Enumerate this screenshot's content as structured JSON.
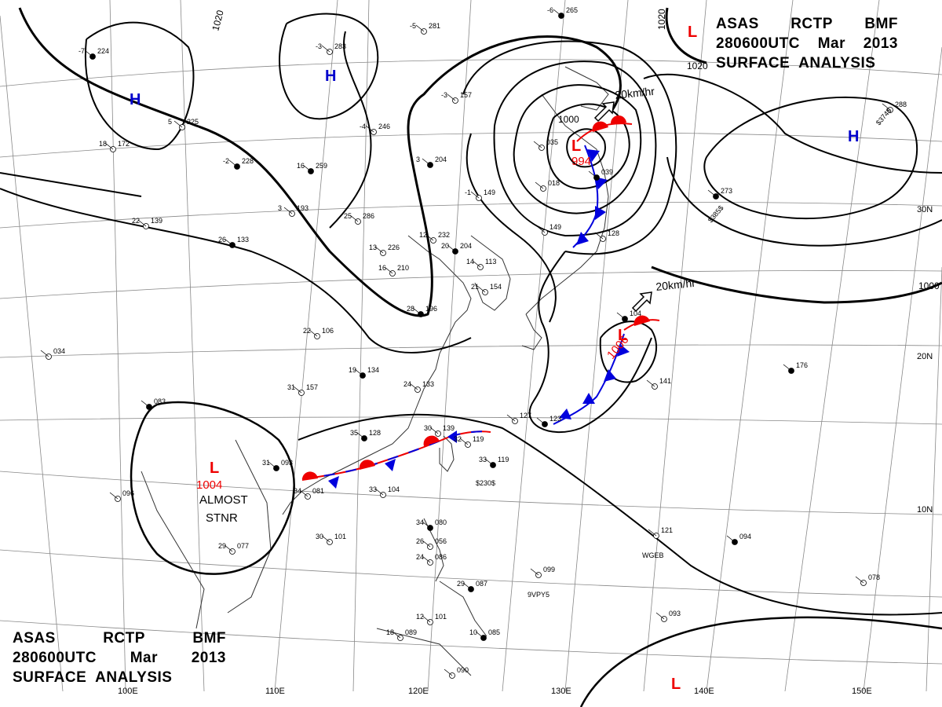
{
  "header": {
    "line1": [
      "ASAS",
      "RCTP",
      "BMF"
    ],
    "line2": [
      "280600UTC",
      "Mar",
      "2013"
    ],
    "line3": "SURFACE  ANALYSIS"
  },
  "pressure_centers": {
    "h_marker": "H",
    "l_marker": "L",
    "low_values": [
      "1004",
      "994",
      "1006"
    ],
    "almost_stnr": [
      "ALMOST",
      "STNR"
    ]
  },
  "isobar_labels": [
    "1020",
    "1020",
    "1020",
    "1000"
  ],
  "motion_labels": [
    "20km/hr",
    "20km/hr"
  ],
  "latitude_labels": [
    "30N",
    "20N",
    "10N"
  ],
  "longitude_labels": [
    "100E",
    "110E",
    "120E",
    "130E",
    "140E",
    "150E"
  ],
  "station_numbers": [
    "224",
    "172",
    "225",
    "228",
    "283",
    "281",
    "265",
    "157",
    "246",
    "204",
    "149",
    "286",
    "259",
    "193",
    "226",
    "133",
    "139",
    "232",
    "204",
    "113",
    "210",
    "134",
    "106",
    "154",
    "196",
    "133",
    "157",
    "128",
    "139",
    "119",
    "119",
    "104",
    "081",
    "093",
    "077",
    "101",
    "080",
    "056",
    "086",
    "087",
    "101",
    "089",
    "085",
    "090",
    "099",
    "094",
    "121",
    "141",
    "176",
    "093",
    "078",
    "273",
    "288",
    "096",
    "083",
    "034",
    "127",
    "123",
    "149",
    "128",
    "039",
    "035",
    "018",
    "104"
  ],
  "station_temps": [
    "-7",
    "18",
    "5",
    "-2",
    "-3",
    "-5",
    "-6",
    "-3",
    "-4",
    "3",
    "-1",
    "25",
    "16",
    "3",
    "13",
    "26",
    "22",
    "12",
    "20",
    "14",
    "16",
    "19",
    "22",
    "21",
    "28",
    "24",
    "31",
    "35",
    "30",
    "32",
    "33",
    "33",
    "34",
    "31",
    "29",
    "30",
    "34",
    "26",
    "24",
    "29",
    "12",
    "18",
    "10"
  ],
  "ship_calls": [
    "9VPY5",
    "WGEB",
    "$230$",
    "$374$",
    "$385$"
  ],
  "colors": {
    "isobar": "#000000",
    "grid": "#888888",
    "coast": "#333333",
    "warm_front": "#ee0000",
    "cold_front": "#0000dd",
    "high_marker": "#0000cc",
    "low_marker": "#ee0000",
    "low_value": "#ee0000"
  }
}
